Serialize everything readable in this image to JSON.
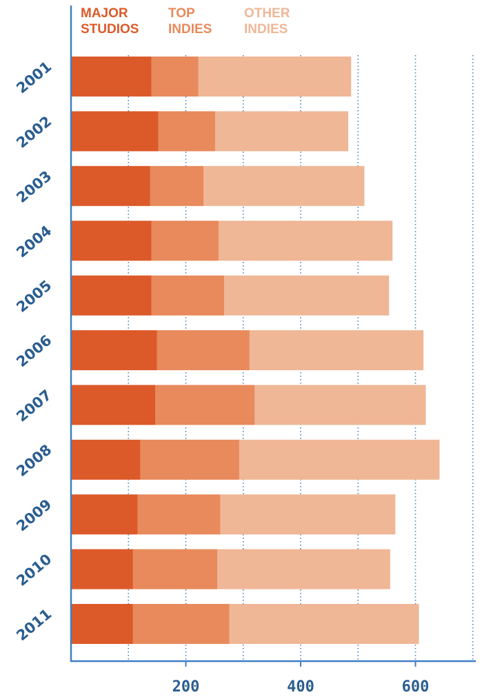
{
  "chart_data": {
    "type": "bar",
    "orientation": "horizontal",
    "stacked": true,
    "categories": [
      "2001",
      "2002",
      "2003",
      "2004",
      "2005",
      "2006",
      "2007",
      "2008",
      "2009",
      "2010",
      "2011"
    ],
    "series": [
      {
        "name": "MAJOR STUDIOS",
        "label_lines": [
          "MAJOR",
          "STUDIOS"
        ],
        "color": "#dc5a2a",
        "values": [
          140,
          152,
          138,
          140,
          140,
          150,
          147,
          121,
          116,
          108,
          108
        ]
      },
      {
        "name": "TOP INDIES",
        "label_lines": [
          "TOP",
          "INDIES"
        ],
        "color": "#e88a5c",
        "values": [
          82,
          99,
          93,
          117,
          127,
          161,
          173,
          172,
          144,
          147,
          168
        ]
      },
      {
        "name": "OTHER INDIES",
        "label_lines": [
          "OTHER",
          "INDIES"
        ],
        "color": "#efb796",
        "values": [
          266,
          232,
          280,
          303,
          287,
          303,
          298,
          349,
          305,
          301,
          330
        ]
      }
    ],
    "x_ticks": [
      200,
      400,
      600
    ],
    "x_gridlines": [
      100,
      200,
      300,
      400,
      500,
      600,
      700
    ],
    "xlim": [
      0,
      710
    ],
    "grid": "dotted vertical",
    "legend_position": "top",
    "axis_color": "#3f7fc2",
    "tick_label_color": "#2a5d8f"
  }
}
